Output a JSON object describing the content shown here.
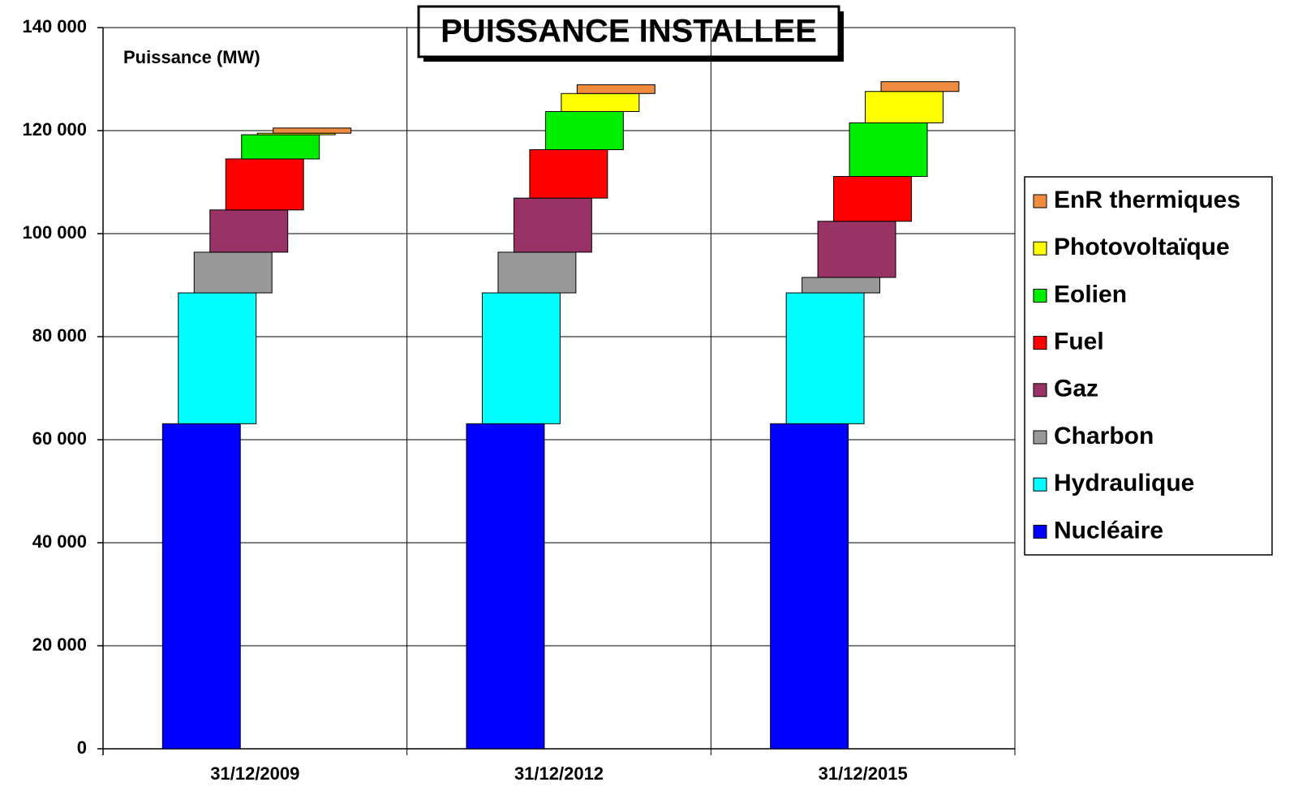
{
  "chart_data": {
    "type": "offset_stacked_bar",
    "title": "PUISSANCE INSTALLEE",
    "y_label": "Puissance (MW)",
    "categories": [
      "31/12/2009",
      "31/12/2012",
      "31/12/2015"
    ],
    "series": [
      {
        "name": "Nucléaire",
        "color": "#0000ff",
        "values": [
          63100,
          63100,
          63100
        ]
      },
      {
        "name": "Hydraulique",
        "color": "#00ffff",
        "values": [
          25400,
          25400,
          25400
        ]
      },
      {
        "name": "Charbon",
        "color": "#999999",
        "values": [
          7900,
          7900,
          3000
        ]
      },
      {
        "name": "Gaz",
        "color": "#993366",
        "values": [
          8200,
          10500,
          10900
        ]
      },
      {
        "name": "Fuel",
        "color": "#ff0000",
        "values": [
          9900,
          9400,
          8700
        ]
      },
      {
        "name": "Eolien",
        "color": "#00ee00",
        "values": [
          4700,
          7400,
          10400
        ]
      },
      {
        "name": "Photovoltaïque",
        "color": "#ffff00",
        "values": [
          300,
          3500,
          6100
        ]
      },
      {
        "name": "EnR thermiques",
        "color": "#f08c40",
        "values": [
          1000,
          1700,
          1900
        ]
      }
    ],
    "ylim": [
      0,
      140000
    ],
    "yticks": [
      0,
      {
        "value": 20000,
        "label": "20 000"
      },
      {
        "value": 40000,
        "label": "40 000"
      },
      {
        "value": 60000,
        "label": "60 000"
      },
      {
        "value": 80000,
        "label": "80 000"
      },
      {
        "value": 100000,
        "label": "100 000"
      },
      {
        "value": 120000,
        "label": "120 000"
      },
      {
        "value": 140000,
        "label": "140 000"
      }
    ],
    "grid": true,
    "legend": "right"
  }
}
